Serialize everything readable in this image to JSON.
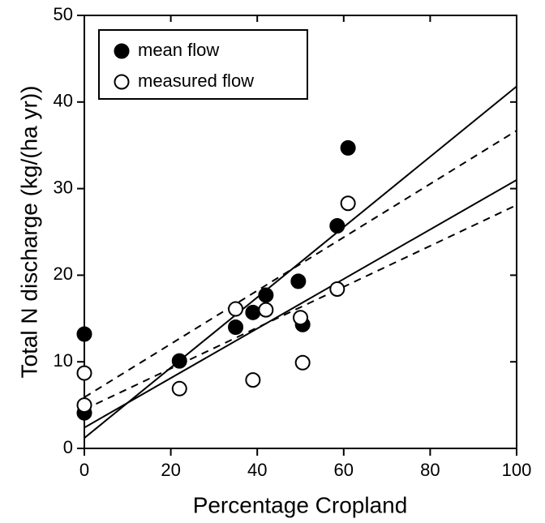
{
  "chart_data": {
    "type": "scatter",
    "xlabel": "Percentage Cropland",
    "ylabel": "Total N discharge (kg/(ha yr))",
    "xlim": [
      0,
      100
    ],
    "ylim": [
      0,
      50
    ],
    "xticks": [
      0,
      20,
      40,
      60,
      80,
      100
    ],
    "yticks": [
      0,
      10,
      20,
      30,
      40,
      50
    ],
    "legend": "upper left",
    "series": [
      {
        "name": "mean flow",
        "marker": "filled",
        "color": "#000000",
        "x": [
          0,
          0,
          22,
          35,
          39,
          42,
          49.5,
          50.5,
          58.5,
          61
        ],
        "values": [
          13.2,
          4.1,
          10.1,
          14.0,
          15.7,
          17.7,
          19.3,
          14.3,
          25.7,
          34.7
        ]
      },
      {
        "name": "measured flow",
        "marker": "open",
        "color": "#000000",
        "x": [
          0,
          0,
          22,
          35,
          39,
          42,
          50,
          50.5,
          58.5,
          61
        ],
        "values": [
          8.7,
          5.0,
          6.9,
          16.1,
          7.9,
          16.0,
          15.1,
          9.9,
          18.4,
          28.3
        ]
      }
    ],
    "lines": [
      {
        "style": "solid",
        "color": "#000000",
        "x": [
          0,
          100
        ],
        "values": [
          1.2,
          41.8
        ]
      },
      {
        "style": "solid",
        "color": "#000000",
        "x": [
          0,
          100
        ],
        "values": [
          2.4,
          31.0
        ]
      },
      {
        "style": "dashed",
        "color": "#000000",
        "x": [
          0,
          100
        ],
        "values": [
          5.9,
          36.7
        ]
      },
      {
        "style": "dashed",
        "color": "#000000",
        "x": [
          0,
          100
        ],
        "values": [
          4.5,
          28.1
        ]
      }
    ]
  }
}
